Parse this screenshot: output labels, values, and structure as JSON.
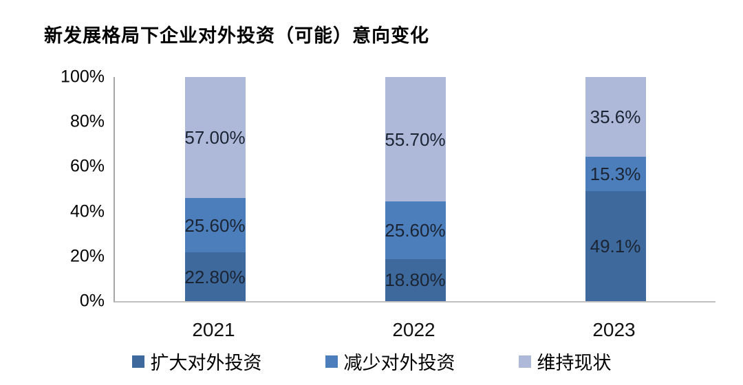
{
  "chart_data": {
    "type": "bar",
    "stacked": true,
    "percent_axis": true,
    "title": "新发展格局下企业对外投资（可能）意向变化",
    "categories": [
      "2021",
      "2022",
      "2023"
    ],
    "series": [
      {
        "name": "扩大对外投资",
        "color": "#3E699C",
        "values": [
          22.8,
          18.8,
          49.1
        ],
        "labels": [
          "22.80%",
          "18.80%",
          "49.1%"
        ]
      },
      {
        "name": "减少对外投资",
        "color": "#4B7EBB",
        "values": [
          25.6,
          25.6,
          15.3
        ],
        "labels": [
          "25.60%",
          "25.60%",
          "15.3%"
        ]
      },
      {
        "name": "维持现状",
        "color": "#AEB8D8",
        "values": [
          57.0,
          55.7,
          35.6
        ],
        "labels": [
          "57.00%",
          "55.70%",
          "35.6%"
        ]
      }
    ],
    "xlabel": "",
    "ylabel": "",
    "ylim": [
      0,
      100
    ],
    "yticks": [
      "0%",
      "20%",
      "40%",
      "60%",
      "80%",
      "100%"
    ],
    "ytick_values": [
      0,
      20,
      40,
      60,
      80,
      100
    ],
    "grid": false,
    "legend_position": "bottom",
    "label_color": "#1B2433",
    "axis_line_color": "#A6A6A6",
    "baseline_color": "#BFBFBF"
  }
}
